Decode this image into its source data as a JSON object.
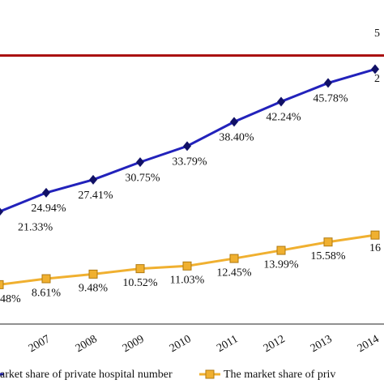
{
  "chart_data": {
    "type": "line",
    "categories": [
      null,
      "2007",
      "2008",
      "2009",
      "2010",
      "2011",
      "2012",
      "2013",
      "2014"
    ],
    "ylim": [
      0,
      61.5
    ],
    "series": [
      {
        "name": "arket share of private hospital number",
        "color": "#2222bb",
        "marker": "diamond",
        "values": [
          21.33,
          24.94,
          27.41,
          30.75,
          33.79,
          38.4,
          42.24,
          45.78,
          48.4
        ],
        "value_labels": [
          "21.33%",
          "24.94%",
          "27.41%",
          "30.75%",
          "33.79%",
          "38.40%",
          "42.24%",
          "45.78%",
          null
        ]
      },
      {
        "name": "The market share of priv",
        "color": "#f0b030",
        "marker": "square",
        "values": [
          7.48,
          8.61,
          9.48,
          10.52,
          11.03,
          12.45,
          13.99,
          15.58,
          16.9
        ],
        "value_labels": [
          null,
          "8.61%",
          "9.48%",
          "10.52%",
          "11.03%",
          "12.45%",
          "13.99%",
          "15.58%",
          null
        ]
      }
    ],
    "reference_line": {
      "value": 51,
      "color": "#aa1111"
    },
    "annotations": [
      "5",
      "2",
      "48%",
      "16"
    ]
  }
}
